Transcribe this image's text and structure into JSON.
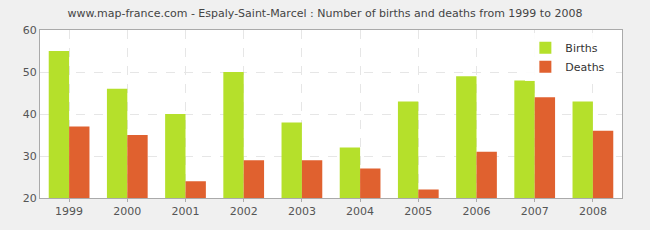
{
  "chart_data": {
    "type": "bar",
    "title": "www.map-france.com - Espaly-Saint-Marcel : Number of births and deaths from 1999 to 2008",
    "categories": [
      "1999",
      "2000",
      "2001",
      "2002",
      "2003",
      "2004",
      "2005",
      "2006",
      "2007",
      "2008"
    ],
    "series": [
      {
        "name": "Births",
        "color": "#b5e02b",
        "values": [
          55,
          46,
          40,
          50,
          38,
          32,
          43,
          49,
          48,
          43
        ]
      },
      {
        "name": "Deaths",
        "color": "#e0612f",
        "values": [
          37,
          35,
          24,
          29,
          29,
          27,
          22,
          31,
          44,
          36
        ]
      }
    ],
    "ylim": [
      20,
      60
    ],
    "yticks": [
      20,
      30,
      40,
      50,
      60
    ],
    "grid": true,
    "legend": "top right"
  }
}
